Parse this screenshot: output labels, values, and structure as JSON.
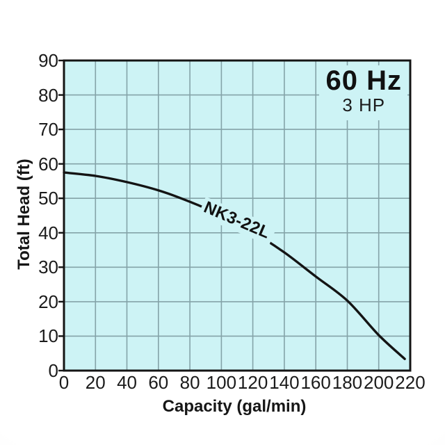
{
  "chart_data": {
    "type": "line",
    "title": "",
    "xlabel": "Capacity (gal/min)",
    "ylabel": "Total Head (ft)",
    "xlim": [
      0,
      220
    ],
    "ylim": [
      0,
      90
    ],
    "x_tick_step": 20,
    "y_tick_step": 10,
    "x_ticks": [
      0,
      20,
      40,
      60,
      80,
      100,
      120,
      140,
      160,
      180,
      200,
      220
    ],
    "y_ticks": [
      0,
      10,
      20,
      30,
      40,
      50,
      60,
      70,
      80,
      90
    ],
    "grid": true,
    "legend": "none",
    "annotations": {
      "frequency": "60 Hz",
      "power": "3 HP"
    },
    "series": [
      {
        "name": "NK3-22L",
        "x": [
          0,
          20,
          40,
          60,
          80,
          100,
          120,
          140,
          160,
          180,
          200,
          216.5
        ],
        "y": [
          57.5,
          56.5,
          54.7,
          52.3,
          49.0,
          45.0,
          40.2,
          34.3,
          27.3,
          20.3,
          10.3,
          3.4
        ]
      }
    ],
    "colors": {
      "plot_bg": "#cdf3f5",
      "grid": "#84a3a8",
      "axis_border": "#141414",
      "curve": "#141414",
      "text": "#1b1b1b"
    }
  }
}
